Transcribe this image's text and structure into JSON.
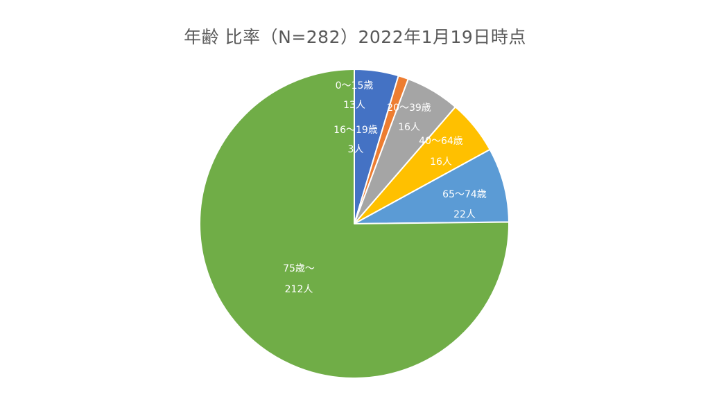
{
  "chart_data": {
    "type": "pie",
    "title": "年齢 比率（N=282）2022年1月19日時点",
    "slices": [
      {
        "label": "0～15歳",
        "count_label": "13人",
        "value": 13,
        "color": "#4472C4"
      },
      {
        "label": "16～19歳",
        "count_label": "3人",
        "value": 3,
        "color": "#ED7D31"
      },
      {
        "label": "20～39歳",
        "count_label": "16人",
        "value": 16,
        "color": "#A5A5A5"
      },
      {
        "label": "40～64歳",
        "count_label": "16人",
        "value": 16,
        "color": "#FFC000"
      },
      {
        "label": "65～74歳",
        "count_label": "22人",
        "value": 22,
        "color": "#5B9BD5"
      },
      {
        "label": "75歳～",
        "count_label": "212人",
        "value": 212,
        "color": "#70AD47"
      }
    ],
    "start_angle_deg": 0,
    "direction": "clockwise",
    "legend": "none"
  }
}
